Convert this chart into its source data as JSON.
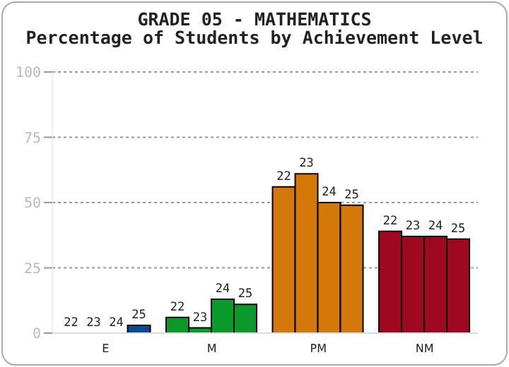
{
  "chart_data": {
    "type": "bar",
    "title": "GRADE 05 - MATHEMATICS",
    "subtitle": "Percentage of Students by Achievement Level",
    "categories": [
      "E",
      "M",
      "PM",
      "NM"
    ],
    "series": [
      {
        "name": "22",
        "colors": [
          "#0a4a94",
          "#0a9a2a",
          "#d4780a",
          "#a00820"
        ],
        "values": [
          0,
          6,
          56,
          39
        ]
      },
      {
        "name": "23",
        "colors": [
          "#0a4a94",
          "#0a9a2a",
          "#d4780a",
          "#a00820"
        ],
        "values": [
          0,
          2,
          61,
          37
        ]
      },
      {
        "name": "24",
        "colors": [
          "#0a4a94",
          "#0a9a2a",
          "#d4780a",
          "#a00820"
        ],
        "values": [
          0,
          13,
          50,
          37
        ]
      },
      {
        "name": "25",
        "colors": [
          "#0a4a94",
          "#0a9a2a",
          "#d4780a",
          "#a00820"
        ],
        "values": [
          3,
          11,
          49,
          36
        ]
      }
    ],
    "ylim": [
      0,
      100
    ],
    "yticks": [
      0,
      25,
      50,
      75,
      100
    ],
    "grid": "y"
  }
}
